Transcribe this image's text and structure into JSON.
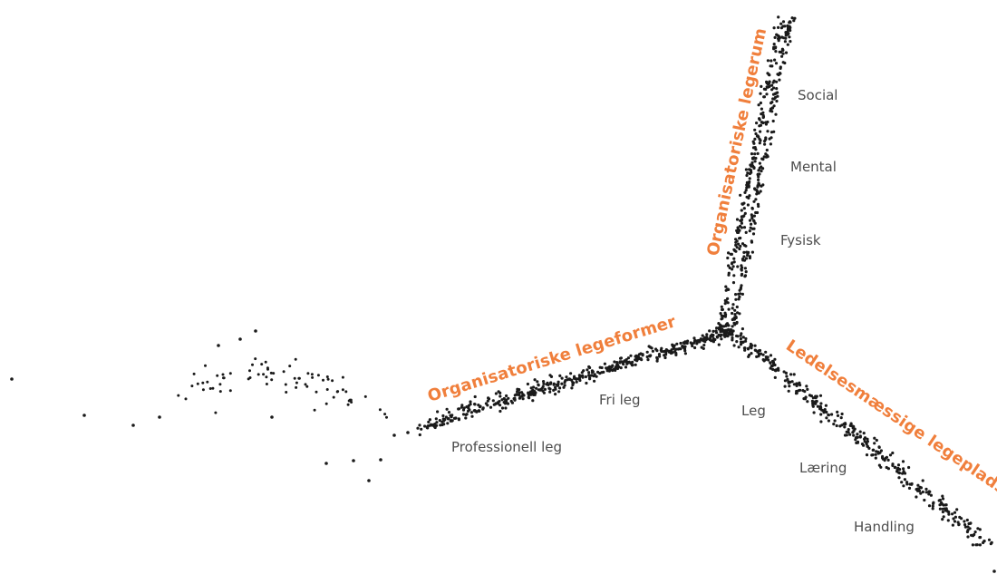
{
  "colors": {
    "accent": "#f07f3c",
    "dots": "#1a1a1a",
    "label_gray": "#4d4d4d",
    "background": "#ffffff"
  },
  "branch_labels": {
    "forms": "Organisatoriske legeformer",
    "rooms": "Organisatoriske legerum",
    "places": "Ledelsesmæssige legepladser"
  },
  "sub_labels": {
    "professionell": "Professionell leg",
    "fri": "Fri leg",
    "leg": "Leg",
    "laering": "Læring",
    "handling": "Handling",
    "social": "Social",
    "mental": "Mental",
    "fysisk": "Fysisk"
  }
}
